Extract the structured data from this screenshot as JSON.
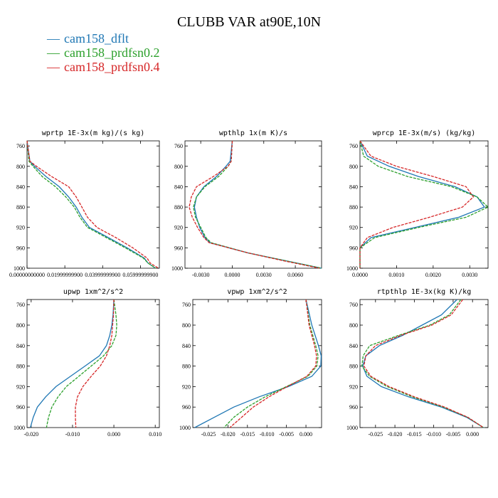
{
  "title": "CLUBB VAR at90E,10N",
  "legend": [
    {
      "label": "cam158_dflt",
      "color": "#1f77b4"
    },
    {
      "label": "cam158_prdfsn0.2",
      "color": "#2ca02c"
    },
    {
      "label": "cam158_prdfsn0.4",
      "color": "#d62728"
    }
  ],
  "chart_data": [
    {
      "type": "line",
      "title": "wprtp  1E-3x(m kg)/(s kg)",
      "xlim": [
        0.0,
        0.07
      ],
      "ylim": [
        1000,
        750
      ],
      "xticks": [
        0.0,
        0.02,
        0.04,
        0.06
      ],
      "xtick_labels": [
        "0.00000000000",
        "0.01999999900",
        "0.03999999900",
        "0.05999999900"
      ],
      "yticks": [
        760,
        800,
        840,
        880,
        920,
        960,
        1000
      ],
      "y": [
        750,
        790,
        800,
        820,
        840,
        860,
        880,
        900,
        920,
        940,
        960,
        980,
        990,
        1000
      ],
      "series": [
        {
          "name": "cam158_dflt",
          "color": "#1f77b4",
          "dashed": false,
          "values": [
            0.0,
            0.0015,
            0.004,
            0.01,
            0.017,
            0.022,
            0.026,
            0.029,
            0.033,
            0.043,
            0.053,
            0.062,
            0.064,
            0.068
          ]
        },
        {
          "name": "cam158_prdfsn0.2",
          "color": "#2ca02c",
          "dashed": true,
          "values": [
            0.0,
            0.001,
            0.0032,
            0.008,
            0.015,
            0.0205,
            0.025,
            0.028,
            0.032,
            0.042,
            0.052,
            0.0615,
            0.064,
            0.068
          ]
        },
        {
          "name": "cam158_prdfsn0.4",
          "color": "#d62728",
          "dashed": true,
          "values": [
            0.0,
            0.0015,
            0.005,
            0.013,
            0.022,
            0.026,
            0.029,
            0.032,
            0.037,
            0.047,
            0.056,
            0.0635,
            0.0652,
            0.0695
          ]
        }
      ]
    },
    {
      "type": "line",
      "title": "wpthlp  1x(m K)/s",
      "xlim": [
        -0.0045,
        0.0085
      ],
      "ylim": [
        1000,
        750
      ],
      "xticks": [
        -0.003,
        0.0,
        0.003,
        0.006
      ],
      "xtick_labels": [
        "-0.0030",
        "0.0000",
        "0.0030",
        "0.0060"
      ],
      "yticks": [
        760,
        800,
        840,
        880,
        920,
        960,
        1000
      ],
      "y": [
        750,
        790,
        800,
        820,
        840,
        860,
        880,
        900,
        920,
        940,
        950,
        970,
        985,
        1000
      ],
      "series": [
        {
          "name": "cam158_dflt",
          "color": "#1f77b4",
          "dashed": false,
          "values": [
            0.0,
            -0.0002,
            -0.0006,
            -0.0015,
            -0.0027,
            -0.0034,
            -0.0036,
            -0.0034,
            -0.0031,
            -0.0026,
            -0.0021,
            0.0015,
            0.005,
            0.0085
          ]
        },
        {
          "name": "cam158_prdfsn0.2",
          "color": "#2ca02c",
          "dashed": true,
          "values": [
            0.0,
            -0.0001,
            -0.0004,
            -0.0013,
            -0.0026,
            -0.0034,
            -0.0037,
            -0.0035,
            -0.003,
            -0.0025,
            -0.002,
            0.0015,
            0.005,
            0.0085
          ]
        },
        {
          "name": "cam158_prdfsn0.4",
          "color": "#d62728",
          "dashed": true,
          "values": [
            0.0,
            -0.0001,
            -0.0004,
            -0.0018,
            -0.0034,
            -0.0039,
            -0.0041,
            -0.0038,
            -0.0033,
            -0.0027,
            -0.0022,
            0.0015,
            0.0048,
            0.0083
          ]
        }
      ]
    },
    {
      "type": "line",
      "title": "wprcp  1E-3x(m/s) (kg/kg)",
      "xlim": [
        0.0,
        0.0035
      ],
      "ylim": [
        1000,
        750
      ],
      "xticks": [
        0.0,
        0.001,
        0.002,
        0.003
      ],
      "xtick_labels": [
        "0.0000",
        "0.0010",
        "0.0020",
        "0.0030"
      ],
      "yticks": [
        760,
        800,
        840,
        880,
        920,
        960,
        1000
      ],
      "y": [
        750,
        780,
        800,
        820,
        840,
        860,
        880,
        900,
        920,
        940,
        960,
        980,
        1000
      ],
      "series": [
        {
          "name": "cam158_dflt",
          "color": "#1f77b4",
          "dashed": false,
          "values": [
            0.0,
            0.0002,
            0.0008,
            0.0016,
            0.0026,
            0.0032,
            0.0034,
            0.0027,
            0.0015,
            0.0003,
            0.0,
            0.0,
            0.0
          ]
        },
        {
          "name": "cam158_prdfsn0.2",
          "color": "#2ca02c",
          "dashed": true,
          "values": [
            0.0,
            0.0001,
            0.0005,
            0.0013,
            0.0025,
            0.0032,
            0.0035,
            0.0029,
            0.0016,
            0.0004,
            0.0,
            0.0,
            0.0
          ]
        },
        {
          "name": "cam158_prdfsn0.4",
          "color": "#d62728",
          "dashed": true,
          "values": [
            0.0,
            0.0003,
            0.001,
            0.002,
            0.0029,
            0.0031,
            0.0028,
            0.0019,
            0.0009,
            0.0002,
            0.0,
            0.0,
            0.0
          ]
        }
      ]
    },
    {
      "type": "line",
      "title": "upwp  1xm^2/s^2",
      "xlim": [
        -0.021,
        0.011
      ],
      "ylim": [
        1000,
        750
      ],
      "xticks": [
        -0.02,
        -0.01,
        0.0,
        0.01
      ],
      "xtick_labels": [
        "-0.020",
        "-0.010",
        "0.000",
        "0.010"
      ],
      "yticks": [
        760,
        800,
        840,
        880,
        920,
        960,
        1000
      ],
      "y": [
        750,
        780,
        800,
        820,
        840,
        860,
        880,
        900,
        920,
        940,
        960,
        980,
        1000
      ],
      "series": [
        {
          "name": "cam158_dflt",
          "color": "#1f77b4",
          "dashed": false,
          "values": [
            0.0,
            -0.0002,
            -0.0005,
            -0.001,
            -0.0018,
            -0.0035,
            -0.007,
            -0.0105,
            -0.014,
            -0.0165,
            -0.0185,
            -0.0195,
            -0.0202
          ]
        },
        {
          "name": "cam158_prdfsn0.2",
          "color": "#2ca02c",
          "dashed": true,
          "values": [
            0.0,
            0.0005,
            0.0007,
            0.0005,
            -0.0005,
            -0.0025,
            -0.0055,
            -0.0085,
            -0.0115,
            -0.0135,
            -0.015,
            -0.0158,
            -0.0163
          ]
        },
        {
          "name": "cam158_prdfsn0.4",
          "color": "#d62728",
          "dashed": true,
          "values": [
            0.0,
            -0.0001,
            -0.0003,
            -0.0005,
            -0.001,
            -0.0018,
            -0.0033,
            -0.0055,
            -0.0075,
            -0.0088,
            -0.0093,
            -0.0093,
            -0.0092
          ]
        }
      ]
    },
    {
      "type": "line",
      "title": "vpwp  1xm^2/s^2",
      "xlim": [
        -0.029,
        0.004
      ],
      "ylim": [
        1000,
        750
      ],
      "xticks": [
        -0.025,
        -0.02,
        -0.015,
        -0.01,
        -0.005,
        0.0
      ],
      "xtick_labels": [
        "-0.025",
        "-0.020",
        "-0.015",
        "-0.010",
        "-0.005",
        "0.000"
      ],
      "yticks": [
        760,
        800,
        840,
        880,
        920,
        960,
        1000
      ],
      "y": [
        750,
        800,
        840,
        860,
        880,
        900,
        920,
        940,
        960,
        980,
        1000
      ],
      "series": [
        {
          "name": "cam158_dflt",
          "color": "#1f77b4",
          "dashed": false,
          "values": [
            0.0,
            0.0015,
            0.0032,
            0.0039,
            0.0038,
            0.0015,
            -0.0045,
            -0.012,
            -0.0185,
            -0.0235,
            -0.0285
          ]
        },
        {
          "name": "cam158_prdfsn0.2",
          "color": "#2ca02c",
          "dashed": true,
          "values": [
            0.0,
            0.001,
            0.0025,
            0.0031,
            0.0028,
            0.0005,
            -0.005,
            -0.0105,
            -0.015,
            -0.0185,
            -0.021
          ]
        },
        {
          "name": "cam158_prdfsn0.4",
          "color": "#d62728",
          "dashed": true,
          "values": [
            0.0,
            0.0008,
            0.0022,
            0.0027,
            0.0025,
            0.0002,
            -0.0048,
            -0.0095,
            -0.0135,
            -0.0165,
            -0.0195
          ]
        }
      ]
    },
    {
      "type": "line",
      "title": "rtpthlp  1E-3x(kg K)/kg",
      "xlim": [
        -0.029,
        0.004
      ],
      "ylim": [
        1000,
        750
      ],
      "xticks": [
        -0.025,
        -0.02,
        -0.015,
        -0.01,
        -0.005,
        0.0
      ],
      "xtick_labels": [
        "-0.025",
        "-0.020",
        "-0.015",
        "-0.010",
        "-0.005",
        "0.000"
      ],
      "yticks": [
        760,
        800,
        840,
        880,
        920,
        960,
        1000
      ],
      "y": [
        750,
        780,
        800,
        820,
        840,
        860,
        880,
        900,
        920,
        940,
        960,
        980,
        1000
      ],
      "series": [
        {
          "name": "cam158_dflt",
          "color": "#1f77b4",
          "dashed": false,
          "values": [
            -0.004,
            -0.008,
            -0.013,
            -0.018,
            -0.024,
            -0.0275,
            -0.0283,
            -0.0272,
            -0.0235,
            -0.0165,
            -0.008,
            -0.0015,
            0.0028
          ]
        },
        {
          "name": "cam158_prdfsn0.2",
          "color": "#2ca02c",
          "dashed": true,
          "values": [
            -0.003,
            -0.006,
            -0.011,
            -0.019,
            -0.0265,
            -0.0282,
            -0.0285,
            -0.0265,
            -0.022,
            -0.0155,
            -0.0075,
            -0.0012,
            0.0028
          ]
        },
        {
          "name": "cam158_prdfsn0.4",
          "color": "#d62728",
          "dashed": true,
          "values": [
            -0.0025,
            -0.0055,
            -0.0105,
            -0.0185,
            -0.025,
            -0.0275,
            -0.028,
            -0.0262,
            -0.0215,
            -0.015,
            -0.0072,
            -0.0012,
            0.0028
          ]
        }
      ]
    }
  ]
}
